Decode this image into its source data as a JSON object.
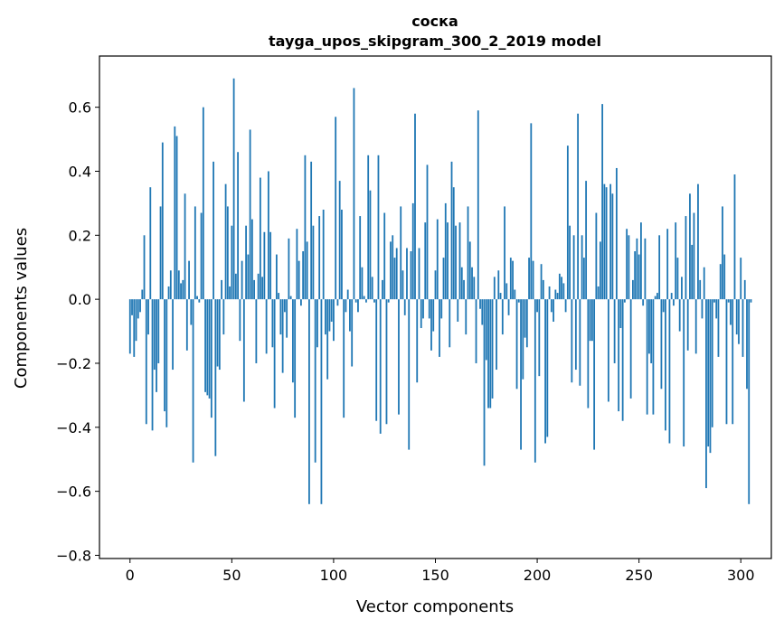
{
  "chart_data": {
    "type": "bar",
    "title": "соска",
    "subtitle": "tayga_upos_skipgram_300_2_2019 model",
    "xlabel": "Vector components",
    "ylabel": "Components values",
    "xlim": [
      -15,
      315
    ],
    "ylim": [
      -0.81,
      0.76
    ],
    "x_ticks": [
      0,
      50,
      100,
      150,
      200,
      250,
      300
    ],
    "y_ticks": [
      -0.8,
      -0.6,
      -0.4,
      -0.2,
      0.0,
      0.2,
      0.4,
      0.6
    ],
    "x_tick_labels": [
      "0",
      "50",
      "100",
      "150",
      "200",
      "250",
      "300"
    ],
    "y_tick_labels": [
      "−0.8",
      "−0.6",
      "−0.4",
      "−0.2",
      "0.0",
      "0.2",
      "0.4",
      "0.6"
    ],
    "bar_color": "#1f77b4",
    "grid": false,
    "values": [
      -0.17,
      -0.05,
      -0.18,
      -0.13,
      -0.06,
      -0.04,
      0.03,
      0.2,
      -0.39,
      -0.11,
      0.35,
      -0.41,
      -0.22,
      -0.29,
      -0.2,
      0.29,
      0.49,
      -0.35,
      -0.4,
      0.04,
      0.09,
      -0.22,
      0.54,
      0.51,
      0.09,
      0.05,
      0.06,
      0.33,
      -0.16,
      0.12,
      -0.08,
      -0.51,
      0.29,
      0.01,
      -0.01,
      0.27,
      0.6,
      -0.29,
      -0.3,
      -0.31,
      -0.37,
      0.43,
      -0.49,
      -0.21,
      -0.22,
      0.06,
      -0.11,
      0.36,
      0.29,
      0.04,
      0.23,
      0.69,
      0.08,
      0.46,
      -0.13,
      0.12,
      -0.32,
      0.23,
      0.14,
      0.53,
      0.25,
      0.06,
      -0.2,
      0.08,
      0.38,
      0.07,
      0.21,
      -0.17,
      0.4,
      0.21,
      -0.15,
      -0.34,
      0.14,
      0.02,
      -0.11,
      -0.23,
      -0.04,
      -0.12,
      0.19,
      0.01,
      -0.26,
      -0.37,
      0.22,
      0.12,
      -0.02,
      0.15,
      0.45,
      0.18,
      -0.64,
      0.43,
      0.23,
      -0.51,
      -0.15,
      0.26,
      -0.64,
      0.28,
      -0.11,
      -0.25,
      -0.1,
      -0.07,
      -0.13,
      0.57,
      -0.02,
      0.37,
      0.28,
      -0.37,
      -0.04,
      0.03,
      -0.1,
      -0.21,
      0.66,
      -0.01,
      -0.04,
      0.26,
      0.1,
      0.01,
      -0.01,
      0.45,
      0.34,
      0.07,
      -0.01,
      -0.38,
      0.45,
      -0.42,
      0.06,
      0.27,
      -0.39,
      -0.01,
      0.18,
      0.2,
      0.13,
      0.16,
      -0.36,
      0.29,
      0.09,
      -0.05,
      0.16,
      -0.47,
      0.15,
      0.3,
      0.58,
      -0.26,
      0.16,
      -0.09,
      -0.06,
      0.24,
      0.42,
      -0.06,
      -0.16,
      -0.1,
      0.09,
      0.25,
      -0.18,
      -0.06,
      0.13,
      0.3,
      0.24,
      -0.15,
      0.43,
      0.35,
      0.23,
      -0.07,
      0.24,
      0.1,
      0.06,
      -0.11,
      0.29,
      0.18,
      0.1,
      0.07,
      -0.2,
      0.59,
      -0.03,
      -0.08,
      -0.52,
      -0.19,
      -0.34,
      -0.34,
      -0.31,
      0.07,
      -0.22,
      0.09,
      0.02,
      -0.11,
      0.29,
      0.05,
      -0.05,
      0.13,
      0.12,
      0.03,
      -0.28,
      -0.01,
      -0.47,
      -0.25,
      -0.12,
      -0.15,
      0.13,
      0.55,
      0.12,
      -0.51,
      -0.04,
      -0.24,
      0.11,
      0.06,
      -0.45,
      -0.43,
      0.04,
      -0.04,
      -0.07,
      0.03,
      0.02,
      0.08,
      0.07,
      0.05,
      -0.04,
      0.48,
      0.23,
      -0.26,
      0.2,
      -0.22,
      0.58,
      -0.27,
      0.2,
      0.13,
      0.37,
      -0.34,
      -0.13,
      -0.13,
      -0.47,
      0.27,
      0.04,
      0.18,
      0.61,
      0.36,
      0.35,
      -0.32,
      0.36,
      0.33,
      -0.2,
      0.41,
      -0.35,
      -0.09,
      -0.38,
      -0.01,
      0.22,
      0.2,
      -0.31,
      0.06,
      0.15,
      0.19,
      0.14,
      0.24,
      -0.02,
      0.19,
      -0.36,
      -0.17,
      -0.2,
      -0.36,
      0.01,
      0.02,
      0.2,
      -0.28,
      -0.04,
      -0.41,
      0.22,
      -0.45,
      0.02,
      -0.02,
      0.24,
      0.13,
      -0.1,
      0.07,
      -0.46,
      0.26,
      -0.16,
      0.33,
      0.17,
      0.27,
      -0.17,
      0.36,
      0.06,
      -0.06,
      0.1,
      -0.59,
      -0.46,
      -0.48,
      -0.4,
      -0.01,
      -0.06,
      -0.18,
      0.11,
      0.29,
      0.14,
      -0.39,
      -0.01,
      -0.08,
      -0.39,
      0.39,
      -0.11,
      -0.14,
      0.13,
      -0.18,
      0.06,
      -0.28,
      -0.64,
      -0.01
    ]
  }
}
